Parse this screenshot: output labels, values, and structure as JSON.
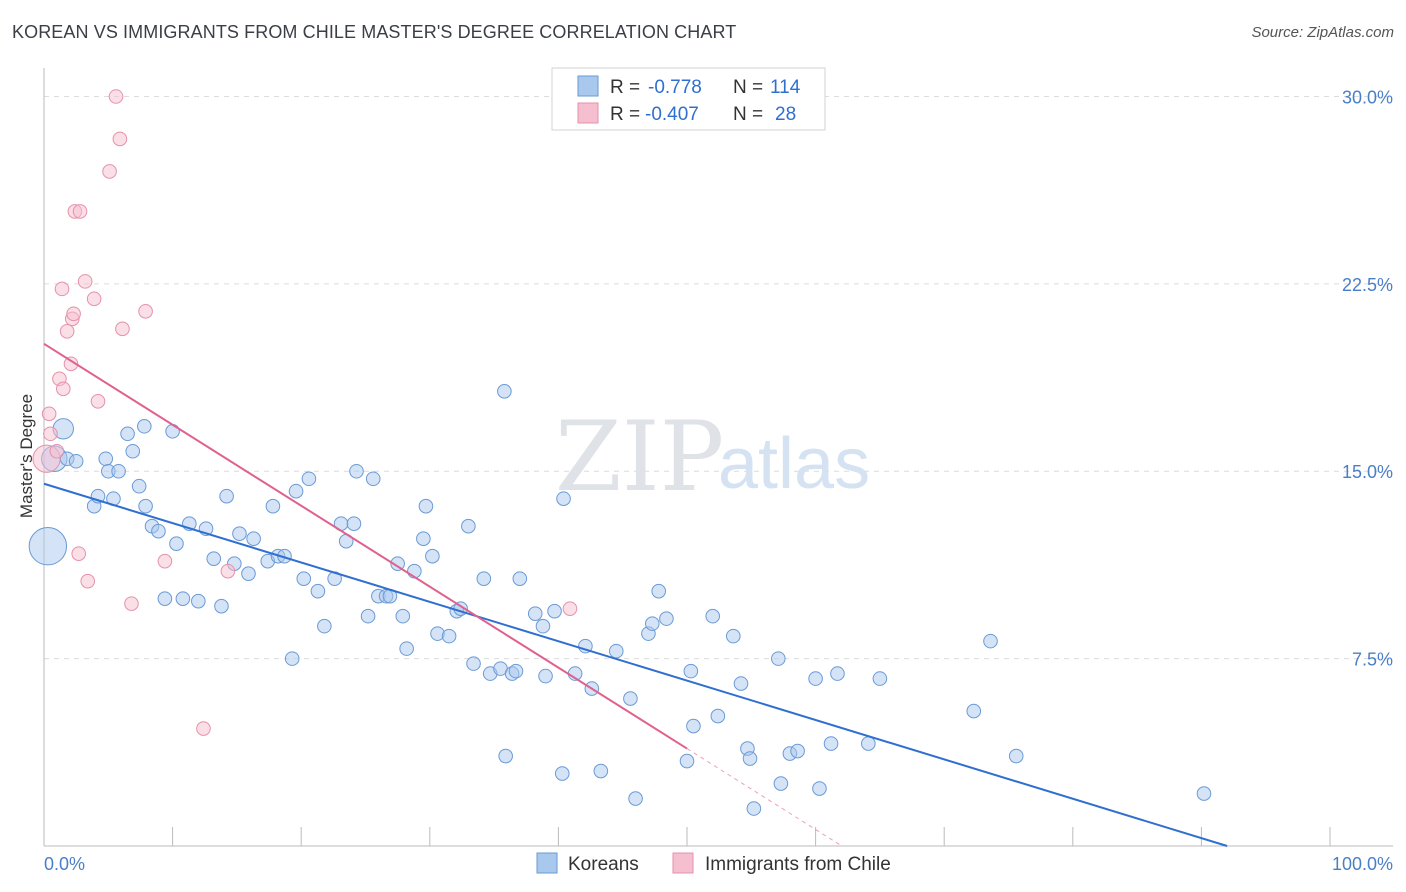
{
  "title": "KOREAN VS IMMIGRANTS FROM CHILE MASTER'S DEGREE CORRELATION CHART",
  "source": "Source: ZipAtlas.com",
  "watermark": {
    "part1": "ZIP",
    "part2": "atlas"
  },
  "colors": {
    "blue_fill": "#a9c8ee",
    "blue_stroke": "#6a9ad6",
    "blue_line": "#2f6fd0",
    "pink_fill": "#f6bfd0",
    "pink_stroke": "#e591ad",
    "pink_line": "#e0608e",
    "grid": "#dcdcdc",
    "axis": "#bbbbbb",
    "value_text": "#2f6fd0",
    "label_text": "#333333"
  },
  "legend": {
    "rows": [
      {
        "r_label": "R =",
        "r_value": "-0.778",
        "n_label": "N =",
        "n_value": "114",
        "series": "blue"
      },
      {
        "r_label": "R =",
        "r_value": "-0.407",
        "n_label": "N =",
        "n_value": "28",
        "series": "pink"
      }
    ]
  },
  "chart_data": {
    "type": "scatter",
    "title": "KOREAN VS IMMIGRANTS FROM CHILE MASTER'S DEGREE CORRELATION CHART",
    "xlabel": "",
    "ylabel": "Master's Degree",
    "xlim": [
      0,
      100
    ],
    "ylim": [
      0,
      30.7
    ],
    "x_tick_labels": [
      "0.0%",
      "100.0%"
    ],
    "y_ticks": [
      7.5,
      15.0,
      22.5,
      30.0
    ],
    "y_tick_labels": [
      "7.5%",
      "15.0%",
      "22.5%",
      "30.0%"
    ],
    "grid": true,
    "legend_position": "top-center",
    "series": [
      {
        "name": "Koreans",
        "color": "blue",
        "trend": {
          "x0": 0,
          "y0": 14.5,
          "x1": 92,
          "y1": 0,
          "dashed_to_x": null
        },
        "points": [
          [
            0.3,
            12.0,
            2.2
          ],
          [
            0.8,
            15.5,
            1.5
          ],
          [
            1.5,
            16.7,
            1.2
          ],
          [
            1.8,
            15.5,
            0.8
          ],
          [
            2.5,
            15.4,
            0.8
          ],
          [
            4.8,
            15.5,
            0.8
          ],
          [
            3.9,
            13.6,
            0.8
          ],
          [
            4.2,
            14.0,
            0.8
          ],
          [
            5.0,
            15.0,
            0.8
          ],
          [
            5.4,
            13.9,
            0.8
          ],
          [
            5.8,
            15.0,
            0.8
          ],
          [
            6.5,
            16.5,
            0.8
          ],
          [
            6.9,
            15.8,
            0.8
          ],
          [
            7.4,
            14.4,
            0.8
          ],
          [
            7.8,
            16.8,
            0.8
          ],
          [
            7.9,
            13.6,
            0.8
          ],
          [
            8.4,
            12.8,
            0.8
          ],
          [
            8.9,
            12.6,
            0.8
          ],
          [
            9.4,
            9.9,
            0.8
          ],
          [
            10.0,
            16.6,
            0.8
          ],
          [
            10.3,
            12.1,
            0.8
          ],
          [
            10.8,
            9.9,
            0.8
          ],
          [
            11.3,
            12.9,
            0.8
          ],
          [
            12.0,
            9.8,
            0.8
          ],
          [
            12.6,
            12.7,
            0.8
          ],
          [
            13.2,
            11.5,
            0.8
          ],
          [
            13.8,
            9.6,
            0.8
          ],
          [
            14.2,
            14.0,
            0.8
          ],
          [
            14.8,
            11.3,
            0.8
          ],
          [
            15.2,
            12.5,
            0.8
          ],
          [
            15.9,
            10.9,
            0.8
          ],
          [
            16.3,
            12.3,
            0.8
          ],
          [
            17.4,
            11.4,
            0.8
          ],
          [
            17.8,
            13.6,
            0.8
          ],
          [
            18.2,
            11.6,
            0.8
          ],
          [
            18.7,
            11.6,
            0.8
          ],
          [
            19.3,
            7.5,
            0.8
          ],
          [
            19.6,
            14.2,
            0.8
          ],
          [
            20.2,
            10.7,
            0.8
          ],
          [
            20.6,
            14.7,
            0.8
          ],
          [
            21.3,
            10.2,
            0.8
          ],
          [
            21.8,
            8.8,
            0.8
          ],
          [
            22.6,
            10.7,
            0.8
          ],
          [
            23.1,
            12.9,
            0.8
          ],
          [
            23.5,
            12.2,
            0.8
          ],
          [
            24.1,
            12.9,
            0.8
          ],
          [
            24.3,
            15.0,
            0.8
          ],
          [
            25.2,
            9.2,
            0.8
          ],
          [
            25.6,
            14.7,
            0.8
          ],
          [
            26.0,
            10.0,
            0.8
          ],
          [
            26.6,
            10.0,
            0.8
          ],
          [
            26.9,
            10.0,
            0.8
          ],
          [
            27.5,
            11.3,
            0.8
          ],
          [
            27.9,
            9.2,
            0.8
          ],
          [
            28.2,
            7.9,
            0.8
          ],
          [
            28.8,
            11.0,
            0.8
          ],
          [
            29.5,
            12.3,
            0.8
          ],
          [
            29.7,
            13.6,
            0.8
          ],
          [
            30.2,
            11.6,
            0.8
          ],
          [
            30.6,
            8.5,
            0.8
          ],
          [
            31.5,
            8.4,
            0.8
          ],
          [
            32.1,
            9.4,
            0.8
          ],
          [
            32.4,
            9.5,
            0.8
          ],
          [
            33.0,
            12.8,
            0.8
          ],
          [
            33.4,
            7.3,
            0.8
          ],
          [
            34.2,
            10.7,
            0.8
          ],
          [
            34.7,
            6.9,
            0.8
          ],
          [
            35.5,
            7.1,
            0.8
          ],
          [
            35.8,
            18.2,
            0.8
          ],
          [
            35.9,
            3.6,
            0.8
          ],
          [
            36.4,
            6.9,
            0.8
          ],
          [
            36.7,
            7.0,
            0.8
          ],
          [
            37.0,
            10.7,
            0.8
          ],
          [
            38.2,
            9.3,
            0.8
          ],
          [
            38.8,
            8.8,
            0.8
          ],
          [
            39.0,
            6.8,
            0.8
          ],
          [
            39.7,
            9.4,
            0.8
          ],
          [
            40.3,
            2.9,
            0.8
          ],
          [
            40.4,
            13.9,
            0.8
          ],
          [
            41.3,
            6.9,
            0.8
          ],
          [
            42.1,
            8.0,
            0.8
          ],
          [
            42.6,
            6.3,
            0.8
          ],
          [
            43.3,
            3.0,
            0.8
          ],
          [
            44.5,
            7.8,
            0.8
          ],
          [
            45.6,
            5.9,
            0.8
          ],
          [
            46.0,
            1.9,
            0.8
          ],
          [
            47.0,
            8.5,
            0.8
          ],
          [
            47.3,
            8.9,
            0.8
          ],
          [
            47.8,
            10.2,
            0.8
          ],
          [
            48.4,
            9.1,
            0.8
          ],
          [
            50.0,
            3.4,
            0.8
          ],
          [
            50.3,
            7.0,
            0.8
          ],
          [
            50.5,
            4.8,
            0.8
          ],
          [
            52.0,
            9.2,
            0.8
          ],
          [
            52.4,
            5.2,
            0.8
          ],
          [
            53.6,
            8.4,
            0.8
          ],
          [
            54.2,
            6.5,
            0.8
          ],
          [
            54.7,
            3.9,
            0.8
          ],
          [
            54.9,
            3.5,
            0.8
          ],
          [
            55.2,
            1.5,
            0.8
          ],
          [
            57.1,
            7.5,
            0.8
          ],
          [
            57.3,
            2.5,
            0.8
          ],
          [
            58.0,
            3.7,
            0.8
          ],
          [
            58.6,
            3.8,
            0.8
          ],
          [
            60.0,
            6.7,
            0.8
          ],
          [
            60.3,
            2.3,
            0.8
          ],
          [
            61.2,
            4.1,
            0.8
          ],
          [
            61.7,
            6.9,
            0.8
          ],
          [
            64.1,
            4.1,
            0.8
          ],
          [
            65.0,
            6.7,
            0.8
          ],
          [
            72.3,
            5.4,
            0.8
          ],
          [
            73.6,
            8.2,
            0.8
          ],
          [
            75.6,
            3.6,
            0.8
          ],
          [
            90.2,
            2.1,
            0.8
          ]
        ]
      },
      {
        "name": "Immigrants from Chile",
        "color": "pink",
        "trend": {
          "x0": 0,
          "y0": 20.1,
          "x1": 50,
          "y1": 3.9,
          "dashed_to_x": 62
        },
        "points": [
          [
            0.2,
            15.5,
            1.6
          ],
          [
            0.4,
            17.3,
            0.8
          ],
          [
            0.5,
            16.5,
            0.8
          ],
          [
            1.0,
            15.8,
            0.8
          ],
          [
            1.2,
            18.7,
            0.8
          ],
          [
            1.4,
            22.3,
            0.8
          ],
          [
            1.5,
            18.3,
            0.8
          ],
          [
            1.8,
            20.6,
            0.8
          ],
          [
            2.1,
            19.3,
            0.8
          ],
          [
            2.2,
            21.1,
            0.8
          ],
          [
            2.3,
            21.3,
            0.8
          ],
          [
            2.4,
            25.4,
            0.8
          ],
          [
            2.8,
            25.4,
            0.8
          ],
          [
            2.7,
            11.7,
            0.8
          ],
          [
            3.2,
            22.6,
            0.8
          ],
          [
            3.4,
            10.6,
            0.8
          ],
          [
            3.9,
            21.9,
            0.8
          ],
          [
            4.2,
            17.8,
            0.8
          ],
          [
            5.1,
            27.0,
            0.8
          ],
          [
            5.6,
            30.0,
            0.8
          ],
          [
            5.9,
            28.3,
            0.8
          ],
          [
            6.1,
            20.7,
            0.8
          ],
          [
            6.8,
            9.7,
            0.8
          ],
          [
            7.9,
            21.4,
            0.8
          ],
          [
            9.4,
            11.4,
            0.8
          ],
          [
            12.4,
            4.7,
            0.8
          ],
          [
            14.3,
            11.0,
            0.8
          ],
          [
            40.9,
            9.5,
            0.8
          ]
        ]
      }
    ]
  },
  "bottom_legend": [
    {
      "label": "Koreans",
      "series": "blue"
    },
    {
      "label": "Immigrants from Chile",
      "series": "pink"
    }
  ]
}
